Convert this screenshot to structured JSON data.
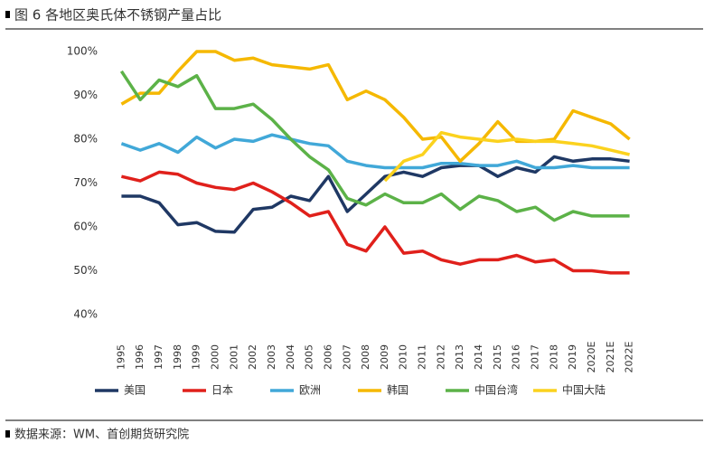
{
  "chart_data": {
    "type": "line",
    "title": "图 6 各地区奥氏体不锈钢产量占比",
    "source": "数据来源：WM、首创期货研究院",
    "categories": [
      "1995",
      "1996",
      "1997",
      "1998",
      "1999",
      "2000",
      "2001",
      "2002",
      "2003",
      "2004",
      "2005",
      "2006",
      "2007",
      "2008",
      "2009",
      "2010",
      "2011",
      "2012",
      "2013",
      "2014",
      "2015",
      "2016",
      "2017",
      "2018",
      "2019",
      "2020E",
      "2021E",
      "2022E"
    ],
    "series": [
      {
        "name": "美国",
        "color": "#1f3864",
        "values": [
          67,
          67,
          65.5,
          60.5,
          61,
          59,
          58.8,
          64,
          64.5,
          67,
          66,
          71.5,
          63.5,
          67.5,
          71.5,
          72.5,
          71.5,
          73.5,
          74,
          74,
          71.5,
          73.5,
          72.5,
          76,
          75,
          75.5,
          75.5,
          75
        ]
      },
      {
        "name": "日本",
        "color": "#e0201b",
        "values": [
          71.5,
          70.5,
          72.5,
          72,
          70,
          69,
          68.5,
          70,
          68,
          65.5,
          62.5,
          63.5,
          56,
          54.5,
          60,
          54,
          54.5,
          52.5,
          51.5,
          52.5,
          52.5,
          53.5,
          52,
          52.5,
          50,
          50,
          49.5,
          49.5
        ]
      },
      {
        "name": "欧洲",
        "color": "#41a8d8",
        "values": [
          79,
          77.5,
          79,
          77,
          80.5,
          78,
          80,
          79.5,
          81,
          80,
          79,
          78.5,
          75,
          74,
          73.5,
          73.5,
          73.5,
          74.5,
          74.5,
          74,
          74,
          75,
          73.5,
          73.5,
          74,
          73.5,
          73.5,
          73.5
        ]
      },
      {
        "name": "韩国",
        "color": "#f5b800",
        "values": [
          88,
          90.5,
          90.5,
          95.5,
          100,
          100,
          98,
          98.5,
          97,
          96.5,
          96,
          97,
          89,
          91,
          89,
          85,
          80,
          80.5,
          75,
          79,
          84,
          79.5,
          79.5,
          80,
          86.5,
          85,
          83.5,
          80
        ]
      },
      {
        "name": "中国台湾",
        "color": "#5cb248",
        "values": [
          95.5,
          89,
          93.5,
          92,
          94.5,
          87,
          87,
          88,
          84.5,
          80,
          76,
          73,
          66.5,
          65,
          67.5,
          65.5,
          65.5,
          67.5,
          64,
          67,
          66,
          63.5,
          64.5,
          61.5,
          63.5,
          62.5,
          62.5,
          62.5
        ]
      },
      {
        "name": "中国大陆",
        "color": "#fbd21e",
        "values": [
          null,
          null,
          null,
          null,
          null,
          null,
          null,
          null,
          null,
          null,
          null,
          null,
          null,
          null,
          70.5,
          75,
          76.5,
          81.5,
          80.5,
          80,
          79.5,
          80,
          79.5,
          79.5,
          79,
          78.5,
          77.5,
          76.5
        ]
      }
    ],
    "ylim": [
      40,
      100
    ],
    "yticks": [
      {
        "value": 40,
        "label": "40%"
      },
      {
        "value": 50,
        "label": "50%"
      },
      {
        "value": 60,
        "label": "60%"
      },
      {
        "value": 70,
        "label": "70%"
      },
      {
        "value": 80,
        "label": "80%"
      },
      {
        "value": 90,
        "label": "90%"
      },
      {
        "value": 100,
        "label": "100%"
      }
    ],
    "legend": "bottom"
  }
}
